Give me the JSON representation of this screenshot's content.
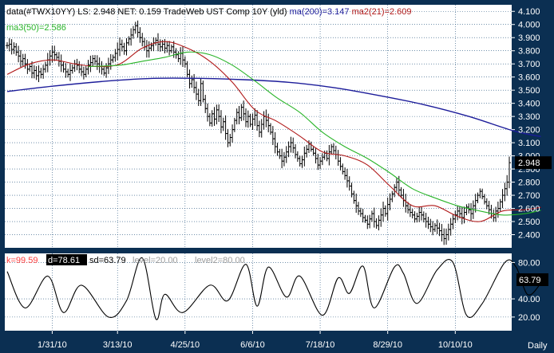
{
  "colors": {
    "background": "#0b2f52",
    "panel": "#ffffff",
    "grid": "#1f4f7a",
    "bars": "#000000",
    "ma200": "#1c1c9a",
    "ma21": "#b01818",
    "ma50": "#28b428",
    "osc_line": "#000000",
    "axis_text": "#ffffff",
    "k_text": "#ff4040",
    "d_bg": "#000000",
    "level_text": "#9a9a9a",
    "last_bg_price": "#000000",
    "last_fg_price": "#2fe12f",
    "last_bg_osc": "#000000",
    "last_fg_osc": "#ffffff"
  },
  "header": {
    "line1_part1": "data(#TWX10YY) LS: 2.948  NET: 0.159  TradeWeb UST Comp 10Y (yld)",
    "line1_part2": "ma(200)=3.147",
    "line1_part3": "ma2(21)=2.609",
    "line2": "ma3(50)=2.586"
  },
  "osc_header": {
    "k": "k=99.59",
    "d": "d=78.61",
    "sd": "sd=63.79",
    "level1": "level=20.00",
    "level2": "level2=80.00"
  },
  "footer": {
    "timeframe": "Daily"
  },
  "chart_data": [
    {
      "type": "ohlc",
      "symbol": "#TWX10YY",
      "last": 2.948,
      "last_label": "2.948",
      "net": 0.159,
      "ylim": [
        2.3,
        4.15
      ],
      "y_ticks": [
        "4.100",
        "4.000",
        "3.900",
        "3.800",
        "3.700",
        "3.600",
        "3.500",
        "3.400",
        "3.300",
        "3.200",
        "3.100",
        "3.000",
        "2.900",
        "2.800",
        "2.700",
        "2.600",
        "2.500",
        "2.400"
      ],
      "x_ticks": [
        "1/31/10",
        "3/13/10",
        "4/25/10",
        "6/6/10",
        "7/18/10",
        "8/29/10",
        "10/10/10"
      ],
      "x_tick_index": [
        20,
        49,
        79,
        109,
        139,
        169,
        199
      ],
      "closes": [
        3.84,
        3.85,
        3.81,
        3.83,
        3.79,
        3.76,
        3.72,
        3.74,
        3.7,
        3.66,
        3.68,
        3.63,
        3.65,
        3.61,
        3.64,
        3.62,
        3.66,
        3.69,
        3.73,
        3.76,
        3.79,
        3.77,
        3.75,
        3.72,
        3.69,
        3.66,
        3.64,
        3.62,
        3.65,
        3.67,
        3.7,
        3.69,
        3.66,
        3.64,
        3.62,
        3.66,
        3.69,
        3.71,
        3.74,
        3.72,
        3.7,
        3.68,
        3.66,
        3.63,
        3.67,
        3.7,
        3.73,
        3.75,
        3.78,
        3.81,
        3.85,
        3.83,
        3.8,
        3.86,
        3.89,
        3.92,
        3.96,
        3.99,
        3.94,
        3.9,
        3.87,
        3.83,
        3.8,
        3.82,
        3.84,
        3.86,
        3.88,
        3.85,
        3.83,
        3.85,
        3.82,
        3.84,
        3.8,
        3.83,
        3.79,
        3.77,
        3.74,
        3.78,
        3.73,
        3.7,
        3.62,
        3.55,
        3.58,
        3.52,
        3.47,
        3.42,
        3.55,
        3.43,
        3.36,
        3.3,
        3.25,
        3.32,
        3.28,
        3.35,
        3.3,
        3.22,
        3.26,
        3.17,
        3.1,
        3.14,
        3.2,
        3.27,
        3.33,
        3.29,
        3.37,
        3.32,
        3.26,
        3.3,
        3.24,
        3.28,
        3.31,
        3.23,
        3.18,
        3.24,
        3.3,
        3.27,
        3.23,
        3.18,
        3.13,
        3.07,
        3.03,
        3.0,
        2.96,
        2.99,
        3.03,
        3.07,
        3.1,
        3.06,
        3.01,
        2.98,
        2.94,
        2.97,
        3.02,
        3.05,
        3.09,
        3.05,
        3.02,
        2.98,
        2.93,
        2.96,
        2.99,
        3.02,
        2.98,
        3.03,
        3.07,
        3.04,
        3.01,
        2.96,
        2.92,
        2.88,
        2.85,
        2.81,
        2.77,
        2.71,
        2.66,
        2.62,
        2.58,
        2.56,
        2.53,
        2.51,
        2.48,
        2.52,
        2.56,
        2.5,
        2.47,
        2.51,
        2.55,
        2.6,
        2.56,
        2.63,
        2.67,
        2.71,
        2.76,
        2.8,
        2.74,
        2.7,
        2.66,
        2.62,
        2.59,
        2.57,
        2.55,
        2.52,
        2.54,
        2.57,
        2.55,
        2.52,
        2.5,
        2.48,
        2.46,
        2.44,
        2.47,
        2.45,
        2.43,
        2.4,
        2.37,
        2.4,
        2.44,
        2.48,
        2.52,
        2.55,
        2.58,
        2.56,
        2.53,
        2.57,
        2.61,
        2.59,
        2.56,
        2.62,
        2.66,
        2.7,
        2.73,
        2.69,
        2.65,
        2.62,
        2.59,
        2.56,
        2.53,
        2.58,
        2.6,
        2.65,
        2.7,
        2.75,
        2.8,
        2.948
      ]
    },
    {
      "type": "line",
      "name": "ma(200)",
      "last": 3.147,
      "anchors_x": [
        0,
        20,
        45,
        65,
        85,
        105,
        125,
        145,
        165,
        185,
        205,
        225,
        237
      ],
      "anchors_y": [
        3.49,
        3.53,
        3.57,
        3.59,
        3.59,
        3.58,
        3.56,
        3.52,
        3.46,
        3.39,
        3.3,
        3.19,
        3.147
      ]
    },
    {
      "type": "line",
      "name": "ma2(21)",
      "last": 2.609,
      "anchors_x": [
        0,
        10,
        20,
        30,
        40,
        50,
        60,
        70,
        80,
        90,
        100,
        110,
        120,
        130,
        140,
        150,
        160,
        170,
        180,
        190,
        200,
        210,
        220,
        230,
        237
      ],
      "anchors_y": [
        3.62,
        3.7,
        3.73,
        3.7,
        3.68,
        3.7,
        3.82,
        3.87,
        3.82,
        3.72,
        3.56,
        3.35,
        3.26,
        3.15,
        3.03,
        3.0,
        2.93,
        2.77,
        2.62,
        2.62,
        2.54,
        2.5,
        2.58,
        2.59,
        2.609
      ]
    },
    {
      "type": "line",
      "name": "ma3(50)",
      "last": 2.586,
      "anchors_x": [
        36,
        50,
        60,
        70,
        80,
        90,
        100,
        110,
        120,
        130,
        140,
        150,
        160,
        170,
        180,
        190,
        200,
        210,
        220,
        230,
        237
      ],
      "anchors_y": [
        3.68,
        3.69,
        3.72,
        3.75,
        3.79,
        3.77,
        3.69,
        3.57,
        3.44,
        3.33,
        3.18,
        3.07,
        2.98,
        2.87,
        2.75,
        2.68,
        2.62,
        2.58,
        2.55,
        2.56,
        2.586
      ]
    },
    {
      "type": "line",
      "name": "stochastic",
      "k": 99.59,
      "d": 78.61,
      "sd": 63.79,
      "last_label": "63.79",
      "levels": [
        20,
        80
      ],
      "ylim": [
        5,
        90
      ],
      "y_ticks": [
        "80.00",
        "40.00",
        "20.00"
      ],
      "anchors_x": [
        0,
        8,
        18,
        25,
        33,
        45,
        53,
        60,
        66,
        70,
        78,
        90,
        98,
        106,
        111,
        116,
        124,
        130,
        140,
        147,
        152,
        158,
        163,
        172,
        176,
        182,
        191,
        198,
        204,
        211,
        221,
        226,
        231,
        236,
        237
      ],
      "anchors_y": [
        70,
        30,
        65,
        25,
        55,
        20,
        38,
        85,
        18,
        45,
        25,
        55,
        38,
        78,
        32,
        75,
        42,
        65,
        22,
        63,
        46,
        76,
        30,
        75,
        68,
        35,
        72,
        80,
        22,
        35,
        80,
        75,
        45,
        54,
        63.79
      ]
    }
  ]
}
